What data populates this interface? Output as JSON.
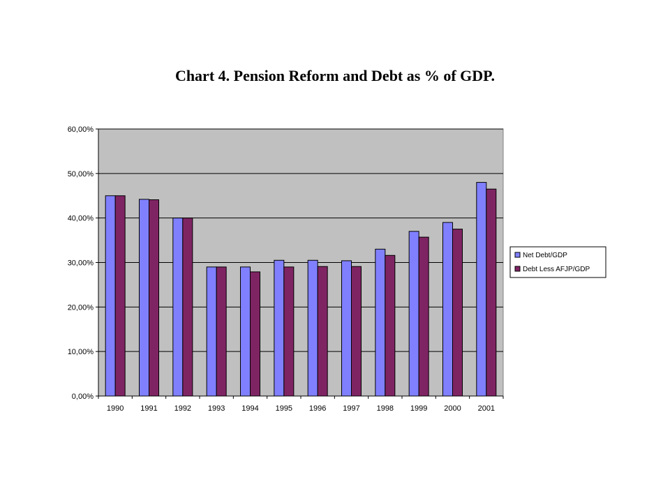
{
  "chart_data": {
    "type": "bar",
    "title": "Chart 4. Pension Reform and Debt as % of GDP.",
    "xlabel": "",
    "ylabel": "",
    "ylim": [
      0,
      60
    ],
    "yticks": [
      0,
      10,
      20,
      30,
      40,
      50,
      60
    ],
    "ytick_labels": [
      "0,00%",
      "10,00%",
      "20,00%",
      "30,00%",
      "40,00%",
      "50,00%",
      "60,00%"
    ],
    "grid": true,
    "legend_position": "right",
    "categories": [
      "1990",
      "1991",
      "1992",
      "1993",
      "1994",
      "1995",
      "1996",
      "1997",
      "1998",
      "1999",
      "2000",
      "2001"
    ],
    "series": [
      {
        "name": "Net Debt/GDP",
        "color": "#8080ff",
        "values": [
          45.0,
          44.2,
          40.0,
          29.0,
          29.0,
          30.5,
          30.5,
          30.4,
          33.0,
          37.0,
          39.0,
          48.0
        ]
      },
      {
        "name": "Debt Less AFJP/GDP",
        "color": "#7f2463",
        "values": [
          45.0,
          44.1,
          40.0,
          29.0,
          27.9,
          29.0,
          29.1,
          29.1,
          31.6,
          35.7,
          37.5,
          46.5
        ]
      }
    ]
  }
}
